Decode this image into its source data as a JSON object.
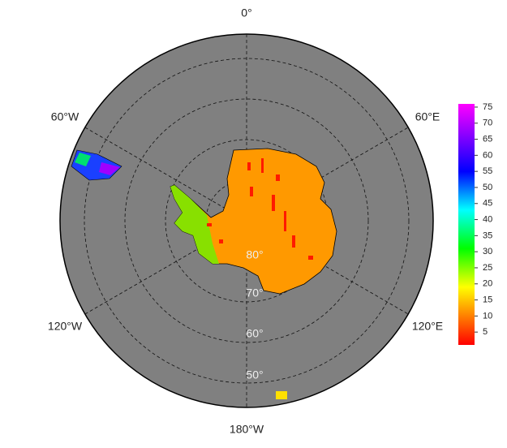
{
  "map": {
    "meridian_labels": [
      "0°",
      "60°E",
      "120°E",
      "180°W",
      "120°W",
      "60°W"
    ],
    "parallel_labels": [
      "80°",
      "70°",
      "60°",
      "50°"
    ]
  },
  "colorbar": {
    "range": [
      1,
      76
    ],
    "ticks": [
      5,
      10,
      15,
      20,
      25,
      30,
      35,
      40,
      45,
      50,
      55,
      60,
      65,
      70,
      75
    ]
  }
}
